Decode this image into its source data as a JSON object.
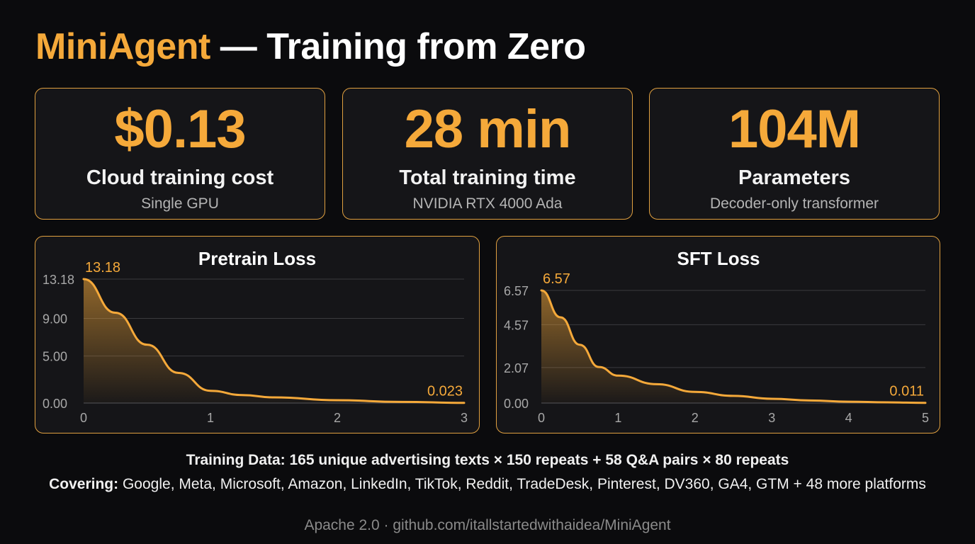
{
  "header": {
    "title_accent": "MiniAgent",
    "title_rest": " — Training from Zero"
  },
  "stats": [
    {
      "value": "$0.13",
      "label": "Cloud training cost",
      "sub": "Single GPU"
    },
    {
      "value": "28 min",
      "label": "Total training time",
      "sub": "NVIDIA RTX 4000 Ada"
    },
    {
      "value": "104M",
      "label": "Parameters",
      "sub": "Decoder-only transformer"
    }
  ],
  "chart_data": [
    {
      "type": "area",
      "title": "Pretrain Loss",
      "xlabel": "",
      "ylabel": "",
      "xlim": [
        0,
        3
      ],
      "ylim": [
        0,
        13.18
      ],
      "xticks": [
        "0",
        "1",
        "2",
        "3"
      ],
      "yticks": [
        {
          "value": 0,
          "label": "0.00"
        },
        {
          "value": 5,
          "label": "5.00"
        },
        {
          "value": 9,
          "label": "9.00"
        },
        {
          "value": 13.18,
          "label": "13.18"
        }
      ],
      "grid": true,
      "color": "#f5a93a",
      "series": [
        {
          "x": [
            0,
            0.25,
            0.5,
            0.75,
            1.0,
            1.25,
            1.5,
            2.0,
            2.5,
            3.0
          ],
          "y": [
            13.18,
            9.6,
            6.2,
            3.2,
            1.3,
            0.85,
            0.6,
            0.3,
            0.12,
            0.023
          ]
        }
      ],
      "annotations": [
        {
          "x": 0,
          "y": 13.18,
          "text": "13.18",
          "anchor": "start"
        },
        {
          "x": 3,
          "y": 0.023,
          "text": "0.023",
          "anchor": "end"
        }
      ]
    },
    {
      "type": "area",
      "title": "SFT Loss",
      "xlabel": "",
      "ylabel": "",
      "xlim": [
        0,
        5
      ],
      "ylim": [
        0,
        6.57
      ],
      "xticks": [
        "0",
        "1",
        "2",
        "3",
        "4",
        "5"
      ],
      "yticks": [
        {
          "value": 0,
          "label": "0.00"
        },
        {
          "value": 2.07,
          "label": "2.07"
        },
        {
          "value": 4.57,
          "label": "4.57"
        },
        {
          "value": 6.57,
          "label": "6.57"
        }
      ],
      "grid": true,
      "color": "#f5a93a",
      "series": [
        {
          "x": [
            0,
            0.25,
            0.5,
            0.75,
            1.0,
            1.5,
            2.0,
            2.5,
            3.0,
            3.5,
            4.0,
            4.5,
            5.0
          ],
          "y": [
            6.57,
            5.0,
            3.4,
            2.1,
            1.6,
            1.1,
            0.65,
            0.42,
            0.25,
            0.15,
            0.08,
            0.04,
            0.011
          ]
        }
      ],
      "annotations": [
        {
          "x": 0,
          "y": 6.57,
          "text": "6.57",
          "anchor": "start"
        },
        {
          "x": 5,
          "y": 0.011,
          "text": "0.011",
          "anchor": "end"
        }
      ]
    }
  ],
  "footer": {
    "data_line": "Training Data: 165 unique advertising texts × 150 repeats + 58 Q&A pairs × 80 repeats",
    "covering_label": "Covering:",
    "covering_text": " Google, Meta, Microsoft, Amazon, LinkedIn, TikTok, Reddit, TradeDesk, Pinterest, DV360, GA4, GTM + 48 more platforms",
    "license": "Apache 2.0 · github.com/itallstartedwithaidea/MiniAgent"
  }
}
